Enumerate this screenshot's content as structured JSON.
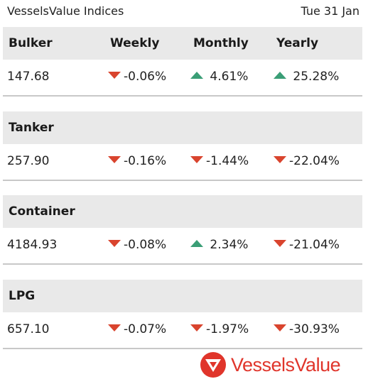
{
  "header": {
    "title": "VesselsValue Indices",
    "date": "Tue 31 Jan"
  },
  "columns": [
    "Weekly",
    "Monthly",
    "Yearly"
  ],
  "sections": [
    {
      "name": "Bulker",
      "value": "147.68",
      "changes": [
        {
          "dir": "down",
          "text": "-0.06%"
        },
        {
          "dir": "up",
          "text": " 4.61%"
        },
        {
          "dir": "up",
          "text": " 25.28%"
        }
      ]
    },
    {
      "name": "Tanker",
      "value": "257.90",
      "changes": [
        {
          "dir": "down",
          "text": "-0.16%"
        },
        {
          "dir": "down",
          "text": "-1.44%"
        },
        {
          "dir": "down",
          "text": "-22.04%"
        }
      ]
    },
    {
      "name": "Container",
      "value": "4184.93",
      "changes": [
        {
          "dir": "down",
          "text": "-0.08%"
        },
        {
          "dir": "up",
          "text": " 2.34%"
        },
        {
          "dir": "down",
          "text": "-21.04%"
        }
      ]
    },
    {
      "name": "LPG",
      "value": "657.10",
      "changes": [
        {
          "dir": "down",
          "text": "-0.07%"
        },
        {
          "dir": "down",
          "text": "-1.97%"
        },
        {
          "dir": "down",
          "text": "-30.93%"
        }
      ]
    }
  ],
  "colors": {
    "up": "#3a9e76",
    "down": "#d9442e",
    "brand": "#e0352b",
    "header_bg": "#e9e9e9"
  },
  "logo": {
    "text": "VesselsValue",
    "icon": "vesselsvalue-logo-icon"
  }
}
